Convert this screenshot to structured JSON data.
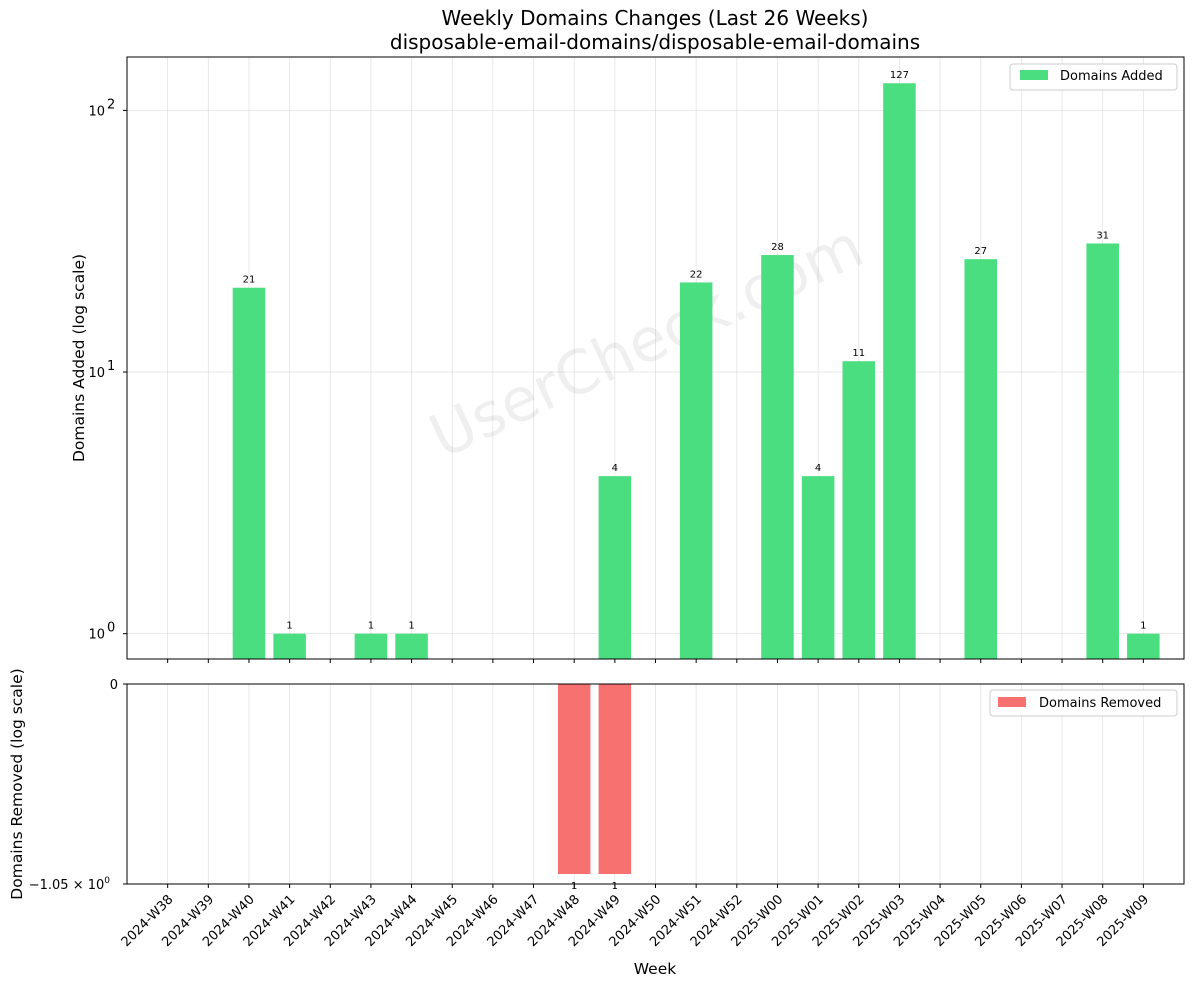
{
  "watermark": "UserCheck.com",
  "chart_data": {
    "type": "bar",
    "title": "Weekly Domains Changes (Last 26 Weeks)",
    "subtitle": "disposable-email-domains/disposable-email-domains",
    "xlabel": "Week",
    "categories": [
      "2024-W38",
      "2024-W39",
      "2024-W40",
      "2024-W41",
      "2024-W42",
      "2024-W43",
      "2024-W44",
      "2024-W45",
      "2024-W46",
      "2024-W47",
      "2024-W48",
      "2024-W49",
      "2024-W50",
      "2024-W51",
      "2024-W52",
      "2025-W00",
      "2025-W01",
      "2025-W02",
      "2025-W03",
      "2025-W04",
      "2025-W05",
      "2025-W06",
      "2025-W07",
      "2025-W08",
      "2025-W09"
    ],
    "added": {
      "name": "Domains Added",
      "ylabel": "Domains Added (log scale)",
      "yscale": "log",
      "ylim": [
        0.8,
        160
      ],
      "yticks": [
        {
          "value": 1,
          "base": "10",
          "exp": "0"
        },
        {
          "value": 10,
          "base": "10",
          "exp": "1"
        },
        {
          "value": 100,
          "base": "10",
          "exp": "2"
        }
      ],
      "color": "#4ade80",
      "values": [
        0,
        0,
        21,
        1,
        0,
        1,
        1,
        0,
        0,
        0,
        0,
        4,
        0,
        22,
        0,
        28,
        4,
        11,
        127,
        0,
        27,
        0,
        0,
        31,
        1
      ]
    },
    "removed": {
      "name": "Domains Removed",
      "ylabel": "Domains Removed (log scale)",
      "yticks": [
        {
          "label": "0"
        },
        {
          "label": "−1.05 × 10",
          "exp": "0"
        }
      ],
      "color": "#f87171",
      "values": [
        0,
        0,
        0,
        0,
        0,
        0,
        0,
        0,
        0,
        0,
        1,
        1,
        0,
        0,
        0,
        0,
        0,
        0,
        0,
        0,
        0,
        0,
        0,
        0,
        0
      ]
    },
    "grid": true,
    "legend_position": "top-right"
  }
}
